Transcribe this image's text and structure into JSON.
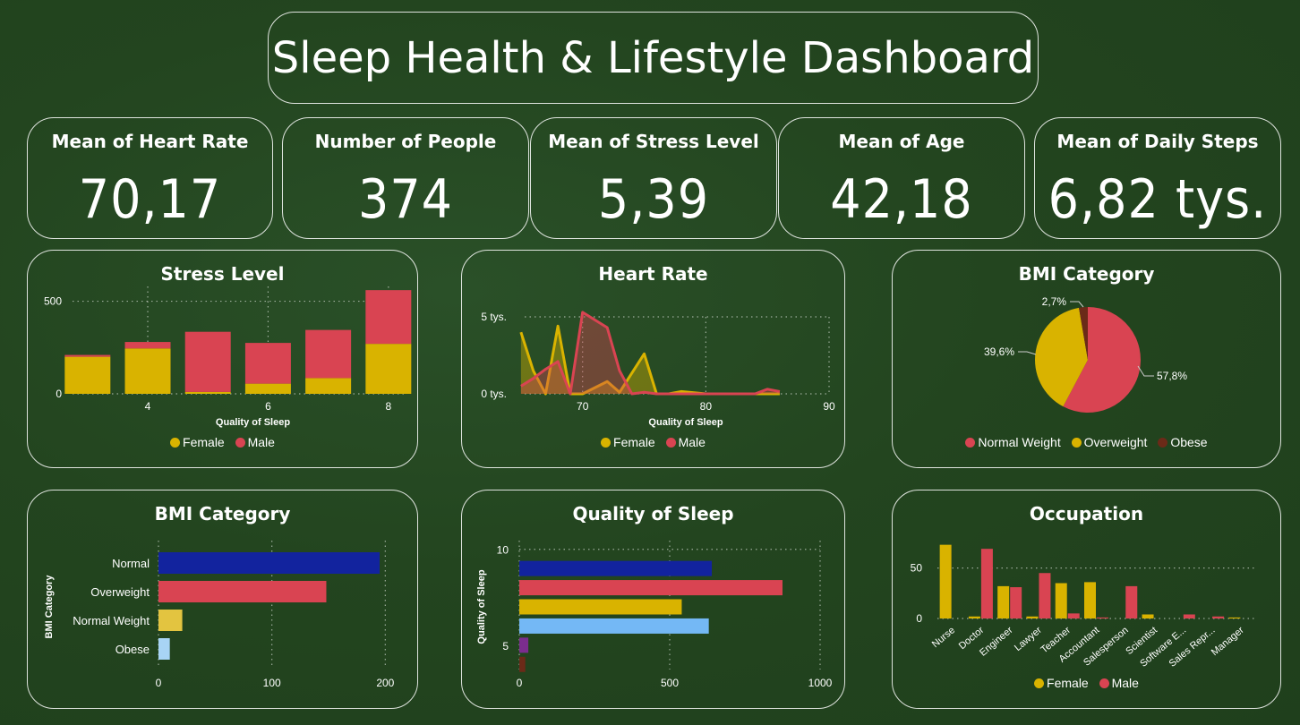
{
  "title": "Sleep Health & Lifestyle Dashboard",
  "colors": {
    "female": "#d9b300",
    "male": "#d94452",
    "normal_weight": "#d94452",
    "overweight": "#d9b300",
    "obese": "#6b2a18",
    "navy": "#12239e",
    "red": "#d94452",
    "gold": "#d9b300",
    "light_gold": "#e3c440",
    "light_blue": "#74b8f5",
    "purple": "#7b2d8e",
    "brown": "#6b2a18",
    "very_light_blue": "#a8d4f5"
  },
  "kpis": [
    {
      "label": "Mean of Heart Rate",
      "value": "70,17"
    },
    {
      "label": "Number of People",
      "value": "374"
    },
    {
      "label": "Mean of Stress Level",
      "value": "5,39"
    },
    {
      "label": "Mean of Age",
      "value": "42,18"
    },
    {
      "label": "Mean of Daily Steps",
      "value": "6,82 tys."
    }
  ],
  "legend_gender": {
    "female": "Female",
    "male": "Male"
  },
  "legend_bmi": {
    "normal_weight": "Normal Weight",
    "overweight": "Overweight",
    "obese": "Obese"
  },
  "chart_data": [
    {
      "id": "stress",
      "type": "bar",
      "stacked": true,
      "title": "Stress Level",
      "xlabel": "Quality of Sleep",
      "ylabel": "",
      "x": [
        3,
        4,
        5,
        6,
        7,
        8
      ],
      "xticks": [
        "4",
        "6",
        "8"
      ],
      "xtick_values": [
        4,
        6,
        8
      ],
      "yticks": [
        "0",
        "500"
      ],
      "ytick_values": [
        0,
        500
      ],
      "ylim": [
        0,
        580
      ],
      "series": [
        {
          "name": "Female",
          "values": [
            200,
            245,
            10,
            55,
            85,
            270
          ]
        },
        {
          "name": "Male",
          "values": [
            10,
            35,
            325,
            220,
            260,
            290
          ]
        }
      ],
      "grid": true
    },
    {
      "id": "heart",
      "type": "area",
      "title": "Heart Rate",
      "xlabel": "Quality of Sleep",
      "ylabel": "",
      "xlim": [
        65,
        90
      ],
      "ylim": [
        0,
        5000
      ],
      "xticks": [
        "70",
        "80",
        "90"
      ],
      "xtick_values": [
        70,
        80,
        90
      ],
      "yticks": [
        "0 tys.",
        "5 tys."
      ],
      "ytick_values": [
        0,
        5000
      ],
      "series": [
        {
          "name": "Female",
          "x": [
            65,
            66,
            67,
            68,
            69,
            70,
            72,
            73,
            75,
            76,
            77,
            78,
            80,
            82,
            84,
            85,
            86
          ],
          "y": [
            4000,
            1500,
            0,
            4400,
            0,
            0,
            800,
            100,
            2600,
            0,
            0,
            150,
            0,
            0,
            0,
            0,
            0
          ]
        },
        {
          "name": "Male",
          "x": [
            65,
            66,
            67,
            68,
            69,
            70,
            72,
            73,
            74,
            75,
            76,
            78,
            80,
            82,
            84,
            85,
            86
          ],
          "y": [
            500,
            1000,
            1600,
            2100,
            0,
            5300,
            4300,
            1500,
            0,
            100,
            0,
            0,
            0,
            0,
            0,
            300,
            150
          ]
        }
      ],
      "grid": true
    },
    {
      "id": "bmi_pie",
      "type": "pie",
      "title": "BMI Category",
      "labels": [
        "Normal Weight",
        "Overweight",
        "Obese"
      ],
      "values": [
        57.8,
        39.6,
        2.7
      ],
      "data_labels": [
        "57,8%",
        "39,6%",
        "2,7%"
      ]
    },
    {
      "id": "bmi_bar",
      "type": "bar",
      "orientation": "horizontal",
      "title": "BMI Category",
      "ylabel": "BMI Category",
      "xlabel": "",
      "categories": [
        "Normal",
        "Overweight",
        "Normal Weight",
        "Obese"
      ],
      "values": [
        195,
        148,
        21,
        10
      ],
      "xlim": [
        0,
        210
      ],
      "xticks": [
        "0",
        "100",
        "200"
      ],
      "xtick_values": [
        0,
        100,
        200
      ],
      "grid": true
    },
    {
      "id": "quality",
      "type": "bar",
      "orientation": "horizontal",
      "title": "Quality of Sleep",
      "ylabel": "Quality of Sleep",
      "xlabel": "",
      "y": [
        9,
        8,
        7,
        6,
        5,
        4
      ],
      "values": [
        640,
        875,
        540,
        630,
        30,
        20
      ],
      "xlim": [
        0,
        1000
      ],
      "ylim": [
        3.5,
        10.5
      ],
      "xticks": [
        "0",
        "500",
        "1000"
      ],
      "xtick_values": [
        0,
        500,
        1000
      ],
      "yticks": [
        "5",
        "10"
      ],
      "ytick_values": [
        5,
        10
      ],
      "grid": true
    },
    {
      "id": "occupation",
      "type": "bar",
      "title": "Occupation",
      "xlabel": "",
      "ylabel": "",
      "categories": [
        "Nurse",
        "Doctor",
        "Engineer",
        "Lawyer",
        "Teacher",
        "Accountant",
        "Salesperson",
        "Scientist",
        "Software E...",
        "Sales Repr...",
        "Manager"
      ],
      "series": [
        {
          "name": "Female",
          "values": [
            73,
            2,
            32,
            2,
            35,
            36,
            0,
            4,
            0,
            0,
            1
          ]
        },
        {
          "name": "Male",
          "values": [
            0,
            69,
            31,
            45,
            5,
            1,
            32,
            0,
            4,
            2,
            0
          ]
        }
      ],
      "ylim": [
        0,
        78
      ],
      "yticks": [
        "0",
        "50"
      ],
      "ytick_values": [
        0,
        50
      ],
      "grid": true
    }
  ]
}
